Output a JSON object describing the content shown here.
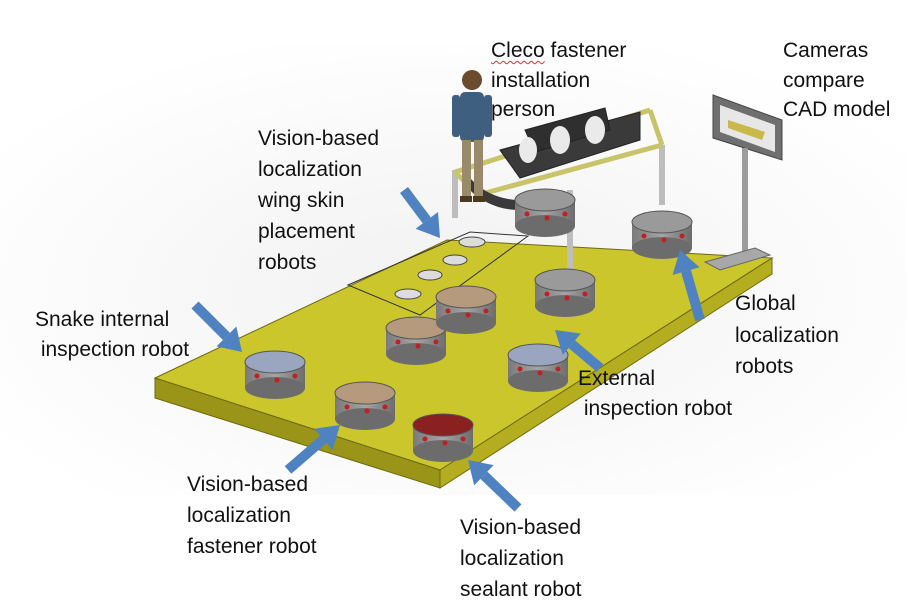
{
  "labels": {
    "cleco": {
      "word": "Cleco",
      "rest": " fastener",
      "line2": "installation",
      "line3": "person"
    },
    "cameras": {
      "line1": "Cameras",
      "line2": "compare",
      "line3": "CAD model"
    },
    "wing_skin": {
      "line1": "Vision-based",
      "line2": "localization",
      "line3": "wing skin",
      "line4": "placement",
      "line5": "robots"
    },
    "snake": {
      "line1": "Snake internal",
      "line2": " inspection robot"
    },
    "global": {
      "line1": "Global",
      "line2": "localization",
      "line3": "robots"
    },
    "external": {
      "line1": "External",
      "line2": " inspection robot"
    },
    "fastener": {
      "line1": "Vision-based",
      "line2": "localization",
      "line3": "fastener robot"
    },
    "sealant": {
      "line1": "Vision-based",
      "line2": "localization",
      "line3": "sealant robot"
    }
  },
  "colors": {
    "platform_top": "#cbc62c",
    "platform_front": "#9a9418",
    "platform_side": "#b3ad1f",
    "arrow": "#4f82c0",
    "robot_base": "#8e8e8e",
    "robot_top": "#b59a7d",
    "frame": "#c8c8c8",
    "skin": "#3a3a3a",
    "monitor": "#6f6f6f",
    "person_shirt": "#3f5f80"
  },
  "icons": {
    "arrow": "blue-arrow-icon",
    "robot": "mobile-robot-icon",
    "person": "person-icon",
    "monitor": "monitor-icon"
  }
}
